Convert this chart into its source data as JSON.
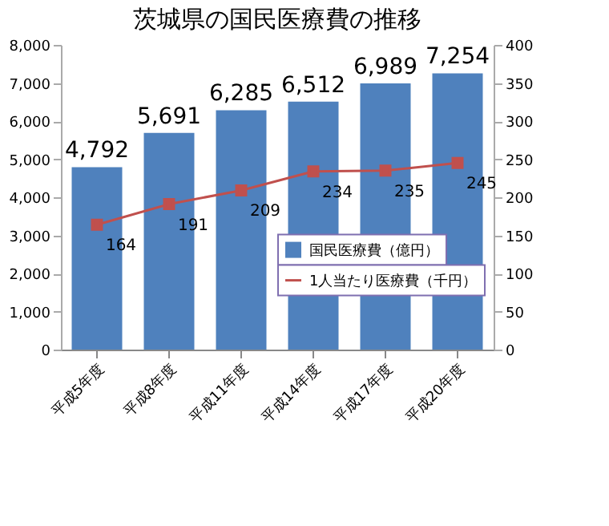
{
  "chart_data": {
    "type": "bar",
    "title": "茨城県の国民医療費の推移",
    "categories": [
      "平成5年度",
      "平成8年度",
      "平成11年度",
      "平成14年度",
      "平成17年度",
      "平成20年度"
    ],
    "series": [
      {
        "name": "国民医療費（億円）",
        "color": "#4f81bd",
        "values": [
          4792,
          5691,
          6285,
          6512,
          6989,
          7254
        ],
        "value_labels": [
          "4,792",
          "5,691",
          "6,285",
          "6,512",
          "6,989",
          "7,254"
        ]
      },
      {
        "name": "1人当たり医療費（千円）",
        "type": "line",
        "axis": "y2",
        "color": "#c0504d",
        "marker": "square",
        "values": [
          164,
          191,
          209,
          234,
          235,
          245
        ]
      }
    ],
    "ylim": [
      0,
      8000
    ],
    "yticks": [
      0,
      {
        "value": 1000,
        "label": "1,000"
      },
      {
        "value": 2000,
        "label": "2,000"
      },
      {
        "value": 3000,
        "label": "3,000"
      },
      {
        "value": 4000,
        "label": "4,000"
      },
      {
        "value": 5000,
        "label": "5,000"
      },
      {
        "value": 6000,
        "label": "6,000"
      },
      {
        "value": 7000,
        "label": "7,000"
      },
      {
        "value": 8000,
        "label": "8,000"
      }
    ],
    "y2lim": [
      0,
      400
    ],
    "y2ticks": [
      0,
      50,
      100,
      150,
      200,
      250,
      300,
      350,
      400
    ],
    "data_labels": true,
    "grid": false,
    "legend": "bottom right"
  }
}
